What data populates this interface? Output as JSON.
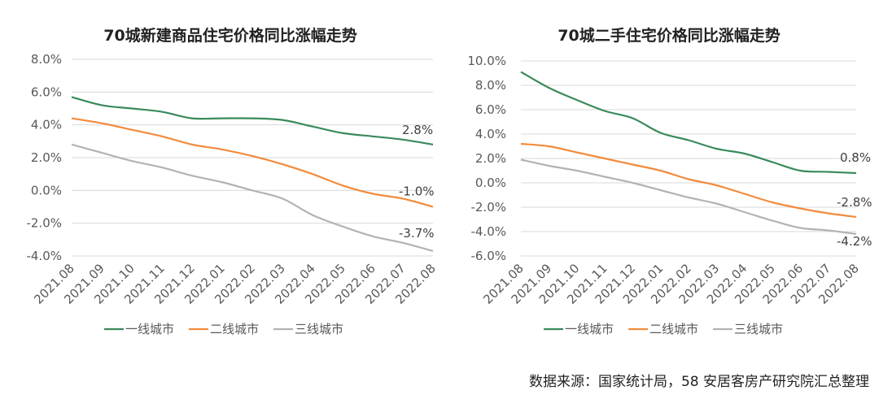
{
  "colors": {
    "tier1": "#3a8a5c",
    "tier2": "#f28b3c",
    "tier3": "#b3b3b3",
    "grid": "#d9d9d9"
  },
  "legend_labels": [
    "一线城市",
    "二线城市",
    "三线城市"
  ],
  "source": "数据来源：国家统计局，58 安居客房产研究院汇总整理",
  "chart_data": [
    {
      "type": "line",
      "title": "70城新建商品住宅价格同比涨幅走势",
      "categories": [
        "2021.08",
        "2021.09",
        "2021.10",
        "2021.11",
        "2021.12",
        "2022.01",
        "2022.02",
        "2022.03",
        "2022.04",
        "2022.05",
        "2022.06",
        "2022.07",
        "2022.08"
      ],
      "ylim": [
        -4.0,
        8.0
      ],
      "yticks": [
        "-4.0%",
        "-2.0%",
        "0.0%",
        "2.0%",
        "4.0%",
        "6.0%",
        "8.0%"
      ],
      "series": [
        {
          "name": "一线城市",
          "values": [
            5.7,
            5.2,
            5.0,
            4.8,
            4.4,
            4.4,
            4.4,
            4.3,
            3.9,
            3.5,
            3.3,
            3.1,
            2.8
          ],
          "end_label": "2.8%"
        },
        {
          "name": "二线城市",
          "values": [
            4.4,
            4.1,
            3.7,
            3.3,
            2.8,
            2.5,
            2.1,
            1.6,
            1.0,
            0.3,
            -0.2,
            -0.5,
            -1.0
          ],
          "end_label": "-1.0%"
        },
        {
          "name": "三线城市",
          "values": [
            2.8,
            2.3,
            1.8,
            1.4,
            0.9,
            0.5,
            0.0,
            -0.5,
            -1.5,
            -2.2,
            -2.8,
            -3.2,
            -3.7
          ],
          "end_label": "-3.7%"
        }
      ]
    },
    {
      "type": "line",
      "title": "70城二手住宅价格同比涨幅走势",
      "categories": [
        "2021.08",
        "2021.09",
        "2021.10",
        "2021.11",
        "2021.12",
        "2022.01",
        "2022.02",
        "2022.03",
        "2022.04",
        "2022.05",
        "2022.06",
        "2022.07",
        "2022.08"
      ],
      "ylim": [
        -6.0,
        10.0
      ],
      "yticks": [
        "-6.0%",
        "-4.0%",
        "-2.0%",
        "0.0%",
        "2.0%",
        "4.0%",
        "6.0%",
        "8.0%",
        "10.0%"
      ],
      "series": [
        {
          "name": "一线城市",
          "values": [
            9.1,
            7.8,
            6.8,
            5.9,
            5.3,
            4.1,
            3.5,
            2.8,
            2.4,
            1.7,
            1.0,
            0.9,
            0.8
          ],
          "end_label": "0.8%"
        },
        {
          "name": "二线城市",
          "values": [
            3.2,
            3.0,
            2.5,
            2.0,
            1.5,
            1.0,
            0.3,
            -0.2,
            -0.9,
            -1.6,
            -2.1,
            -2.5,
            -2.8
          ],
          "end_label": "-2.8%"
        },
        {
          "name": "三线城市",
          "values": [
            1.9,
            1.4,
            1.0,
            0.5,
            0.0,
            -0.6,
            -1.2,
            -1.7,
            -2.4,
            -3.1,
            -3.7,
            -3.9,
            -4.2
          ],
          "end_label": "-4.2%"
        }
      ]
    }
  ]
}
